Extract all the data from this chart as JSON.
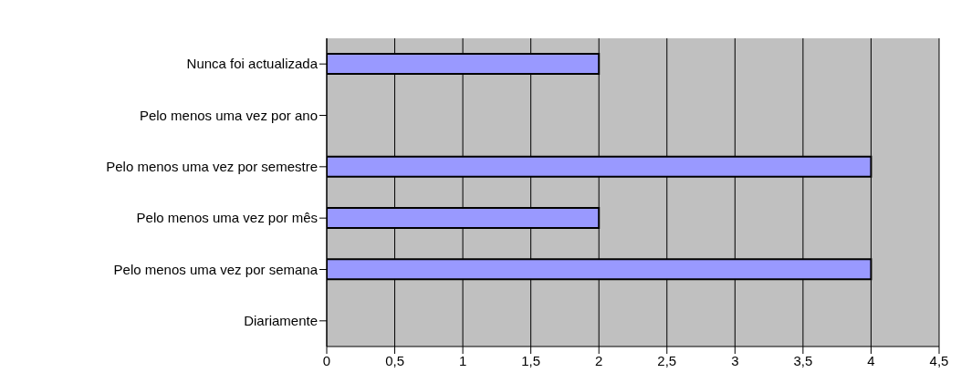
{
  "chart_data": {
    "type": "bar",
    "orientation": "horizontal",
    "categories": [
      "Nunca foi actualizada",
      "Pelo menos uma vez por ano",
      "Pelo menos uma vez por semestre",
      "Pelo menos uma vez por mês",
      "Pelo menos uma vez por semana",
      "Diariamente"
    ],
    "values": [
      2,
      0,
      4,
      2,
      4,
      0
    ],
    "color": "#9999ff",
    "xlim": [
      0,
      4.5
    ],
    "xticks": [
      0,
      {
        "value": 0.5,
        "label": "0,5"
      },
      1,
      {
        "value": 1.5,
        "label": "1,5"
      },
      2,
      {
        "value": 2.5,
        "label": "2,5"
      },
      3,
      {
        "value": 3.5,
        "label": "3,5"
      },
      4,
      {
        "value": 4.5,
        "label": "4,5"
      }
    ],
    "grid": "x",
    "legend": false
  }
}
